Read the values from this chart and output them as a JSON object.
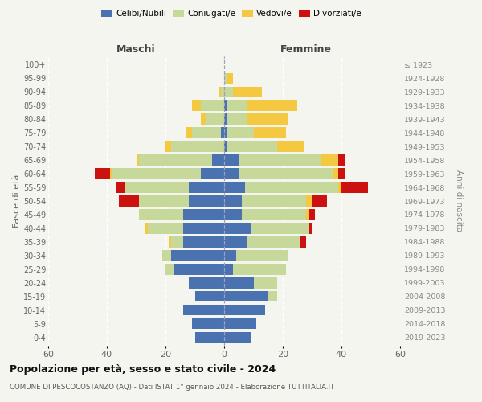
{
  "age_groups": [
    "0-4",
    "5-9",
    "10-14",
    "15-19",
    "20-24",
    "25-29",
    "30-34",
    "35-39",
    "40-44",
    "45-49",
    "50-54",
    "55-59",
    "60-64",
    "65-69",
    "70-74",
    "75-79",
    "80-84",
    "85-89",
    "90-94",
    "95-99",
    "100+"
  ],
  "birth_years": [
    "2019-2023",
    "2014-2018",
    "2009-2013",
    "2004-2008",
    "1999-2003",
    "1994-1998",
    "1989-1993",
    "1984-1988",
    "1979-1983",
    "1974-1978",
    "1969-1973",
    "1964-1968",
    "1959-1963",
    "1954-1958",
    "1949-1953",
    "1944-1948",
    "1939-1943",
    "1934-1938",
    "1929-1933",
    "1924-1928",
    "≤ 1923"
  ],
  "males": {
    "celibi": [
      10,
      11,
      14,
      10,
      12,
      17,
      18,
      14,
      14,
      14,
      12,
      12,
      8,
      4,
      0,
      1,
      0,
      0,
      0,
      0,
      0
    ],
    "coniugati": [
      0,
      0,
      0,
      0,
      0,
      3,
      3,
      4,
      12,
      15,
      17,
      22,
      30,
      25,
      18,
      10,
      6,
      8,
      1,
      0,
      0
    ],
    "vedovi": [
      0,
      0,
      0,
      0,
      0,
      0,
      0,
      1,
      1,
      0,
      0,
      0,
      1,
      1,
      2,
      2,
      2,
      3,
      1,
      0,
      0
    ],
    "divorziati": [
      0,
      0,
      0,
      0,
      0,
      0,
      0,
      0,
      0,
      0,
      7,
      3,
      5,
      0,
      0,
      0,
      0,
      0,
      0,
      0,
      0
    ]
  },
  "females": {
    "nubili": [
      9,
      11,
      14,
      15,
      10,
      3,
      4,
      8,
      9,
      6,
      6,
      7,
      5,
      5,
      1,
      1,
      1,
      1,
      0,
      0,
      0
    ],
    "coniugate": [
      0,
      0,
      0,
      3,
      8,
      18,
      18,
      18,
      20,
      22,
      22,
      32,
      32,
      28,
      17,
      9,
      7,
      7,
      3,
      1,
      0
    ],
    "vedove": [
      0,
      0,
      0,
      0,
      0,
      0,
      0,
      0,
      0,
      1,
      2,
      1,
      2,
      6,
      9,
      11,
      14,
      17,
      10,
      2,
      0
    ],
    "divorziate": [
      0,
      0,
      0,
      0,
      0,
      0,
      0,
      2,
      1,
      2,
      5,
      9,
      2,
      2,
      0,
      0,
      0,
      0,
      0,
      0,
      0
    ]
  },
  "colors": {
    "celibi_nubili": "#4a72b0",
    "coniugati": "#c6d89a",
    "vedovi": "#f5c842",
    "divorziati": "#cc1111"
  },
  "xlim": 60,
  "title": "Popolazione per età, sesso e stato civile - 2024",
  "subtitle": "COMUNE DI PESCOCOSTANZO (AQ) - Dati ISTAT 1° gennaio 2024 - Elaborazione TUTTITALIA.IT",
  "ylabel": "Fasce di età",
  "ylabel_right": "Anni di nascita",
  "xlabel_left": "Maschi",
  "xlabel_right": "Femmine",
  "legend_labels": [
    "Celibi/Nubili",
    "Coniugati/e",
    "Vedovi/e",
    "Divorziati/e"
  ],
  "bg_color": "#f5f5f0"
}
